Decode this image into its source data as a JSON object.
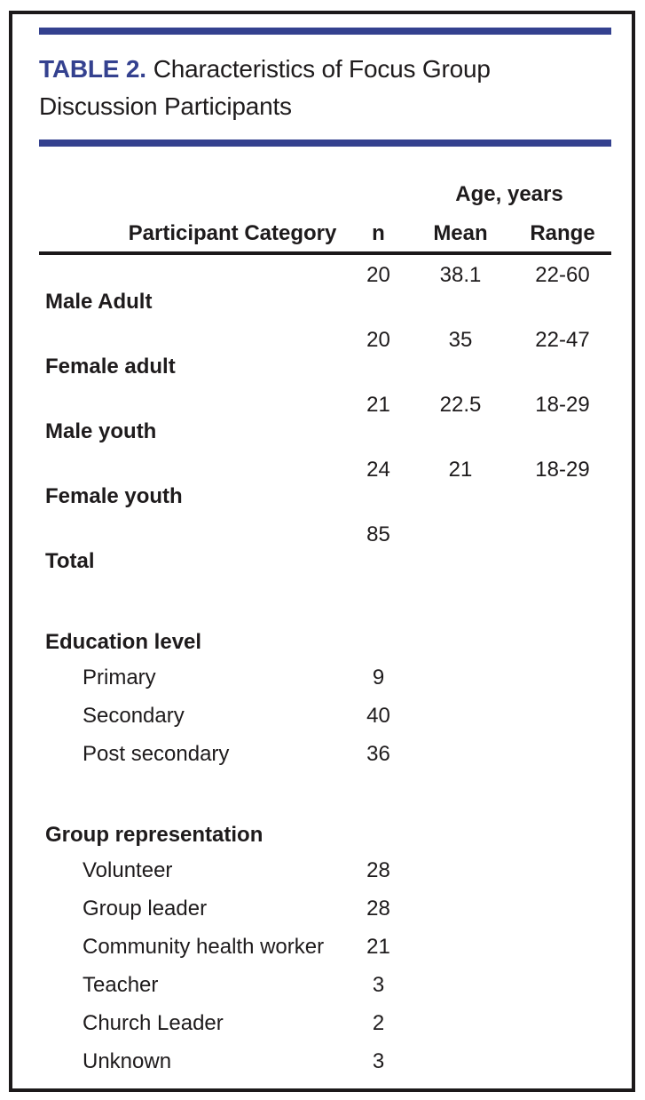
{
  "page": {
    "accent_color": "#34418f",
    "title_label": "TABLE 2.",
    "title_text": "Characteristics of Focus Group Discussion Participants"
  },
  "table": {
    "spanner_label": "Age, years",
    "columns": {
      "category": "Participant Category",
      "n": "n",
      "mean": "Mean",
      "range": "Range"
    },
    "participants": [
      {
        "category": "Male Adult",
        "n": "20",
        "mean": "38.1",
        "range": "22-60"
      },
      {
        "category": "Female adult",
        "n": "20",
        "mean": "35",
        "range": "22-47"
      },
      {
        "category": "Male youth",
        "n": "21",
        "mean": "22.5",
        "range": "18-29"
      },
      {
        "category": "Female youth",
        "n": "24",
        "mean": "21",
        "range": "18-29"
      },
      {
        "category": "Total",
        "n": "85",
        "mean": "",
        "range": ""
      }
    ],
    "sections": [
      {
        "title": "Education level",
        "rows": [
          {
            "label": "Primary",
            "n": "9"
          },
          {
            "label": "Secondary",
            "n": "40"
          },
          {
            "label": "Post secondary",
            "n": "36"
          }
        ]
      },
      {
        "title": "Group representation",
        "rows": [
          {
            "label": "Volunteer",
            "n": "28"
          },
          {
            "label": "Group leader",
            "n": "28"
          },
          {
            "label": "Community health worker",
            "n": "21"
          },
          {
            "label": "Teacher",
            "n": "3"
          },
          {
            "label": "Church Leader",
            "n": "2"
          },
          {
            "label": "Unknown",
            "n": "3"
          }
        ]
      }
    ]
  }
}
